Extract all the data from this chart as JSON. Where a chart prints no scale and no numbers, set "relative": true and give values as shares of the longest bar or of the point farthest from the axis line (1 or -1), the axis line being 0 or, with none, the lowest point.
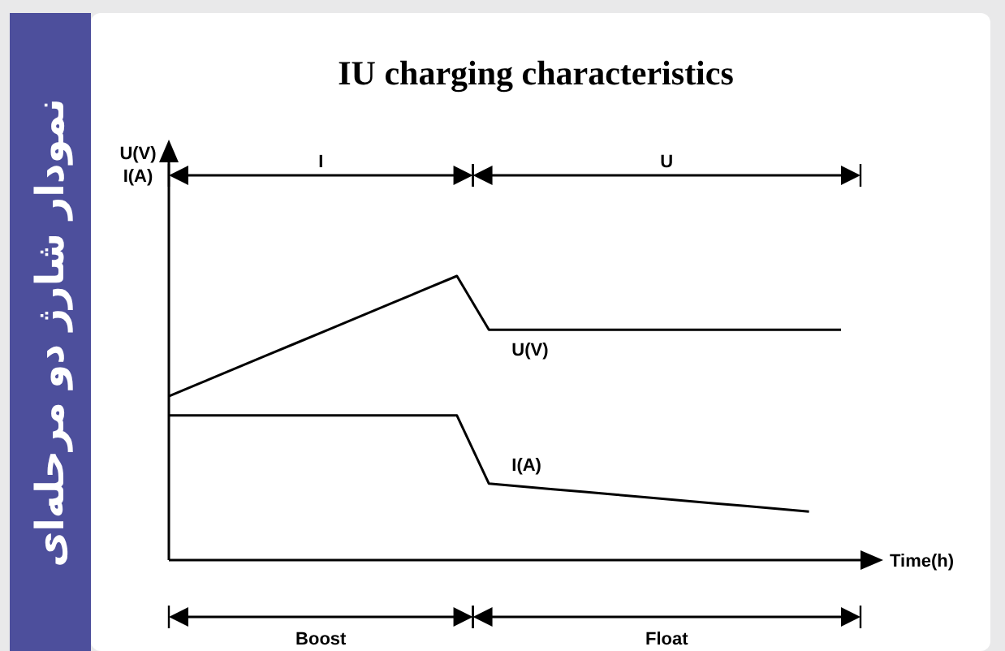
{
  "chart_data": {
    "type": "line",
    "title": "IU charging characteristics",
    "xlabel": "Time(h)",
    "relative": true,
    "categories": [
      null,
      null,
      null,
      null,
      null,
      null,
      null,
      null,
      null,
      null,
      null,
      null,
      null,
      null,
      null,
      null,
      null,
      null,
      null,
      null,
      null,
      null
    ],
    "series": [
      {
        "name": "U(V)",
        "color": "#000000",
        "values": [
          0.577,
          0.624,
          0.671,
          0.718,
          0.765,
          0.812,
          0.859,
          0.906,
          0.953,
          1.0,
          0.811,
          0.811,
          0.811,
          0.811,
          0.811,
          0.811,
          0.811,
          0.811,
          0.811,
          0.811,
          0.811,
          0.811
        ]
      },
      {
        "name": "I(A)",
        "color": "#000000",
        "values": [
          0.509,
          0.509,
          0.509,
          0.509,
          0.509,
          0.509,
          0.509,
          0.509,
          0.509,
          0.509,
          0.269,
          0.259,
          0.249,
          0.24,
          0.23,
          0.22,
          0.21,
          0.2,
          0.191,
          0.181,
          0.171,
          null
        ]
      }
    ],
    "annotations": [
      "نمودار شارژ دو مرحله‌ای",
      "I",
      "U",
      "Boost",
      "Float",
      "U(V)\nI(A)"
    ]
  }
}
